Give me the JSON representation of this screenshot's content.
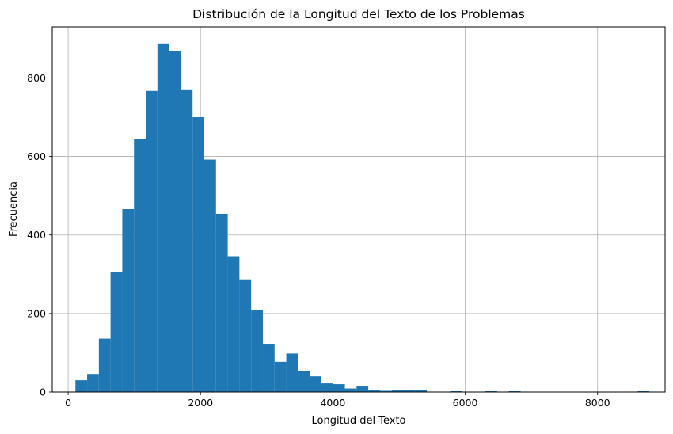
{
  "chart_data": {
    "type": "bar",
    "title": "Distribución de la Longitud del Texto de los Problemas",
    "xlabel": "Longitud del Texto",
    "ylabel": "Frecuencia",
    "xlim": [
      -240,
      9020
    ],
    "ylim": [
      0,
      930
    ],
    "x_ticks": [
      0,
      2000,
      4000,
      6000,
      8000
    ],
    "y_ticks": [
      0,
      200,
      400,
      600,
      800
    ],
    "grid": true,
    "color": "#1f77b4",
    "bin_edges": [
      110,
      287,
      464,
      641,
      818,
      995,
      1172,
      1349,
      1526,
      1703,
      1880,
      2057,
      2234,
      2411,
      2588,
      2765,
      2942,
      3119,
      3296,
      3473,
      3650,
      3827,
      4004,
      4181,
      4358,
      4535,
      4712,
      4889,
      5066,
      5243,
      5420,
      5597,
      5774,
      5951,
      6128,
      6305,
      6482,
      6659,
      6836,
      7013,
      7190,
      7367,
      7544,
      7721,
      7898,
      8075,
      8252,
      8429,
      8606,
      8783
    ],
    "values": [
      30,
      46,
      136,
      305,
      466,
      644,
      767,
      888,
      868,
      769,
      700,
      592,
      454,
      346,
      287,
      208,
      123,
      77,
      98,
      54,
      40,
      22,
      20,
      9,
      14,
      4,
      3,
      6,
      4,
      4,
      0,
      0,
      2,
      0,
      0,
      2,
      0,
      2,
      0,
      0,
      0,
      0,
      0,
      0,
      0,
      0,
      0,
      0,
      2
    ]
  }
}
